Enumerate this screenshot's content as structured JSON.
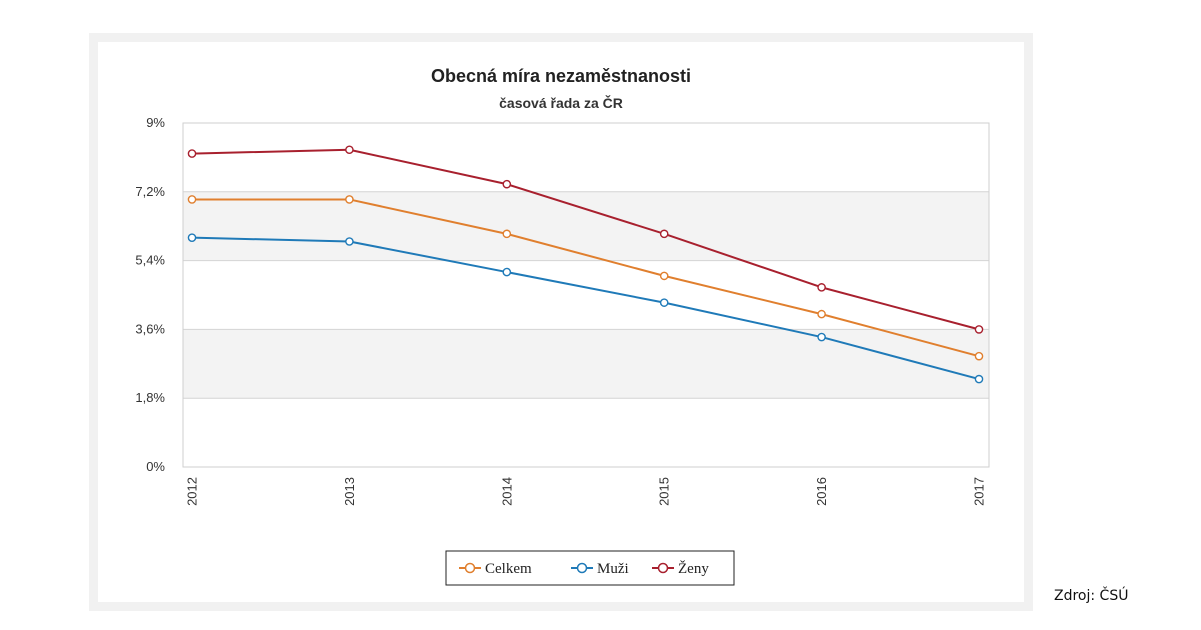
{
  "chart_data": {
    "type": "line",
    "title": "Obecná míra nezaměstnanosti",
    "subtitle": "časová řada za ČR",
    "categories": [
      "2012",
      "2013",
      "2014",
      "2015",
      "2016",
      "2017"
    ],
    "y_ticks": [
      "0%",
      "1,8%",
      "3,6%",
      "5,4%",
      "7,2%",
      "9%"
    ],
    "ylim": [
      0,
      9
    ],
    "y_tick_values": [
      0,
      1.8,
      3.6,
      5.4,
      7.2,
      9
    ],
    "grid": "horizontal, alternating bands",
    "legend_position": "bottom-center",
    "series": [
      {
        "name": "Celkem",
        "color": "#e07f2e",
        "values": [
          7.0,
          7.0,
          6.1,
          5.0,
          4.0,
          2.9
        ]
      },
      {
        "name": "Muži",
        "color": "#1f7ab8",
        "values": [
          6.0,
          5.9,
          5.1,
          4.3,
          3.4,
          2.3
        ]
      },
      {
        "name": "Ženy",
        "color": "#a8202e",
        "values": [
          8.2,
          8.3,
          7.4,
          6.1,
          4.7,
          3.6
        ]
      }
    ]
  },
  "source_note": "Zdroj: ČSÚ"
}
